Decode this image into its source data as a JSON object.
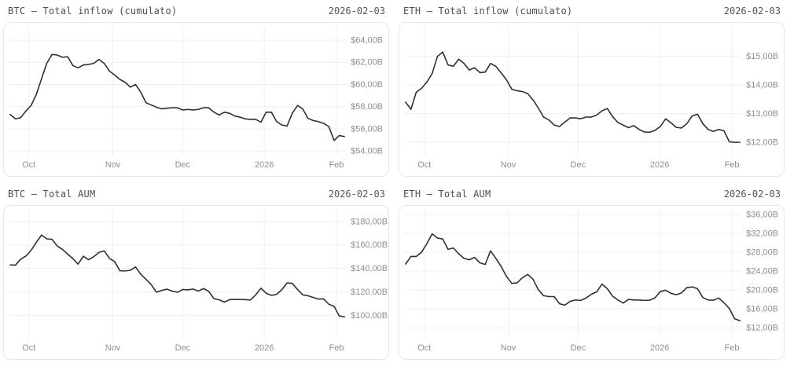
{
  "charts": [
    {
      "title": "BTC — Total inflow (cumulato)",
      "date": "2026-02-03"
    },
    {
      "title": "ETH — Total inflow (cumulato)",
      "date": "2026-02-03"
    },
    {
      "title": "BTC — Total AUM",
      "date": "2026-02-03"
    },
    {
      "title": "ETH — Total AUM",
      "date": "2026-02-03"
    }
  ],
  "chart_data": [
    {
      "type": "line",
      "title": "BTC — Total inflow (cumulato)",
      "unit": "USD billions",
      "line_color": "#2f2f2f",
      "grid": true,
      "x_ticks": [
        "Oct",
        "Nov",
        "Dec",
        "2026",
        "Feb"
      ],
      "x_tick_pos": [
        0.056,
        0.307,
        0.516,
        0.76,
        0.976
      ],
      "y_ticks": [
        {
          "label": "$64,00B",
          "value": 64
        },
        {
          "label": "$62,00B",
          "value": 62
        },
        {
          "label": "$60,00B",
          "value": 60
        },
        {
          "label": "$58,00B",
          "value": 58
        },
        {
          "label": "$56,00B",
          "value": 56
        },
        {
          "label": "$54.00B",
          "value": 54
        }
      ],
      "ylim": [
        53.44,
        64.99
      ],
      "values": [
        57.3,
        56.9,
        57.0,
        57.6,
        58.1,
        59.1,
        60.5,
        61.9,
        62.7,
        62.65,
        62.45,
        62.5,
        61.7,
        61.5,
        61.75,
        61.8,
        61.9,
        62.25,
        61.9,
        61.2,
        60.85,
        60.45,
        60.2,
        59.75,
        60.0,
        59.3,
        58.35,
        58.15,
        57.95,
        57.8,
        57.85,
        57.9,
        57.9,
        57.7,
        57.75,
        57.7,
        57.75,
        57.9,
        57.9,
        57.5,
        57.25,
        57.5,
        57.4,
        57.15,
        57.05,
        56.9,
        56.85,
        56.85,
        56.6,
        57.5,
        57.5,
        56.65,
        56.35,
        56.25,
        57.4,
        58.1,
        57.8,
        56.95,
        56.75,
        56.65,
        56.5,
        56.2,
        54.95,
        55.4,
        55.3
      ]
    },
    {
      "type": "line",
      "title": "ETH — Total inflow (cumulato)",
      "unit": "USD billions",
      "line_color": "#2f2f2f",
      "grid": true,
      "x_ticks": [
        "Oct",
        "Nov",
        "Dec",
        "2026",
        "Feb"
      ],
      "x_tick_pos": [
        0.056,
        0.307,
        0.516,
        0.76,
        0.976
      ],
      "y_ticks": [
        {
          "label": "$15,00B",
          "value": 15
        },
        {
          "label": "$14,00B",
          "value": 14
        },
        {
          "label": "$13,00B",
          "value": 13
        },
        {
          "label": "$12,00B",
          "value": 12
        }
      ],
      "ylim": [
        11.48,
        15.95
      ],
      "values": [
        13.4,
        13.15,
        13.75,
        13.88,
        14.1,
        14.4,
        15.0,
        15.15,
        14.7,
        14.65,
        14.9,
        14.75,
        14.52,
        14.6,
        14.43,
        14.45,
        14.75,
        14.65,
        14.42,
        14.18,
        13.85,
        13.8,
        13.77,
        13.7,
        13.48,
        13.2,
        12.88,
        12.78,
        12.6,
        12.55,
        12.7,
        12.85,
        12.85,
        12.82,
        12.88,
        12.88,
        12.95,
        13.1,
        13.18,
        12.9,
        12.69,
        12.6,
        12.51,
        12.58,
        12.45,
        12.36,
        12.35,
        12.42,
        12.55,
        12.82,
        12.68,
        12.52,
        12.5,
        12.65,
        12.92,
        12.98,
        12.65,
        12.45,
        12.38,
        12.45,
        12.4,
        12.02,
        12.0,
        12.0
      ]
    },
    {
      "type": "line",
      "title": "BTC — Total AUM",
      "unit": "USD billions",
      "line_color": "#2f2f2f",
      "grid": true,
      "x_ticks": [
        "Oct",
        "Nov",
        "Dec",
        "2026",
        "Feb"
      ],
      "x_tick_pos": [
        0.056,
        0.307,
        0.516,
        0.76,
        0.976
      ],
      "y_ticks": [
        {
          "label": "$180,00B",
          "value": 180
        },
        {
          "label": "$160,00B",
          "value": 160
        },
        {
          "label": "$140,00B",
          "value": 140
        },
        {
          "label": "$120,00B",
          "value": 120
        },
        {
          "label": "$100,00B",
          "value": 100
        }
      ],
      "ylim": [
        78.7,
        188
      ],
      "values": [
        143,
        142.8,
        147.8,
        150.5,
        155.4,
        162.2,
        168.5,
        165.2,
        164.8,
        159.2,
        156.2,
        152.2,
        148.3,
        143.6,
        150.4,
        147.4,
        150,
        153.6,
        155,
        148.5,
        145.8,
        138,
        137.8,
        138.4,
        141.2,
        135,
        130.6,
        126.2,
        119.7,
        121.2,
        122.3,
        120.7,
        119.6,
        122,
        121.7,
        122.4,
        120.7,
        122.8,
        120.5,
        114.2,
        113.3,
        111.2,
        113.4,
        113.5,
        113.5,
        113.4,
        113.1,
        117.5,
        123.1,
        118.8,
        117,
        117.9,
        121.8,
        127.6,
        127.2,
        122,
        117.5,
        116.7,
        115.2,
        113.9,
        114,
        109.4,
        107.7,
        99.5,
        98.7
      ]
    },
    {
      "type": "line",
      "title": "ETH — Total AUM",
      "unit": "USD billions",
      "line_color": "#2f2f2f",
      "grid": true,
      "x_ticks": [
        "Oct",
        "Nov",
        "Dec",
        "2026",
        "Feb"
      ],
      "x_tick_pos": [
        0.056,
        0.307,
        0.516,
        0.76,
        0.976
      ],
      "y_ticks": [
        {
          "label": "$36,00B",
          "value": 36
        },
        {
          "label": "$32,00B",
          "value": 32
        },
        {
          "label": "$28,00B",
          "value": 28
        },
        {
          "label": "$24,00B",
          "value": 24
        },
        {
          "label": "$20,00B",
          "value": 20
        },
        {
          "label": "$16,00B",
          "value": 16
        },
        {
          "label": "$12,00B",
          "value": 12
        }
      ],
      "ylim": [
        9.35,
        36.5
      ],
      "values": [
        25.5,
        27.1,
        27.1,
        28,
        29.8,
        31.9,
        31.0,
        30.8,
        28.6,
        28.9,
        27.7,
        26.7,
        26.4,
        26.9,
        25.75,
        25.4,
        28.3,
        26.7,
        25,
        22.9,
        21.4,
        21.5,
        22.6,
        23.3,
        22.3,
        20.1,
        18.8,
        18.6,
        18.6,
        17.1,
        16.8,
        17.6,
        17.9,
        17.8,
        18.3,
        19.1,
        19.6,
        21.25,
        20.3,
        18.7,
        17.9,
        17.25,
        18,
        17.9,
        17.9,
        17.8,
        17.85,
        18.35,
        19.7,
        19.95,
        19.3,
        19,
        19.4,
        20.5,
        20.65,
        20.3,
        18.4,
        17.9,
        17.85,
        18.3,
        17.3,
        16.1,
        13.9,
        13.5
      ]
    }
  ],
  "style": {
    "grid_color": "#efefef",
    "tick_label_color": "#8e8e8e"
  }
}
